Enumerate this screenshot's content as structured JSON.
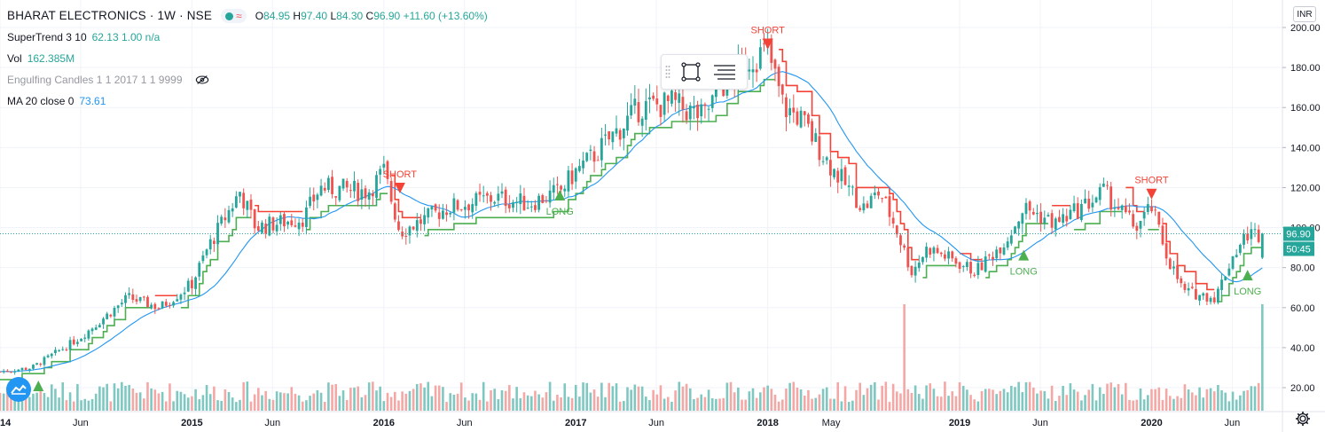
{
  "header": {
    "title": "BHARAT ELECTRONICS · 1W · NSE",
    "ohlc": {
      "o_label": "O",
      "o": "84.95",
      "h_label": "H",
      "h": "97.40",
      "l_label": "L",
      "l": "84.30",
      "c_label": "C",
      "c": "96.90",
      "change": "+11.60 (+13.60%)"
    }
  },
  "indicators": [
    {
      "name": "SuperTrend 3 10",
      "value": "62.13 1.00 n/a"
    },
    {
      "name": "Vol",
      "value": "162.385M"
    },
    {
      "name": "Engulfing Candles 1 1 2017 1 1 9999",
      "value": ""
    },
    {
      "name": "MA 20 close 0",
      "value": "73.61"
    }
  ],
  "currency": "INR",
  "price_tag": {
    "price": "96.90",
    "countdown": "50:45"
  },
  "colors": {
    "up": "#26a69a",
    "down": "#ef5350",
    "ma": "#2196f3",
    "st_up": "#4caf50",
    "st_down": "#f44336",
    "vol_up": "#7fc8c1",
    "vol_down": "#f4a8a6"
  },
  "icons": [
    "status-dot-icon",
    "wave-icon",
    "eye-slash-icon",
    "rectangle-icon",
    "lines-menu-icon",
    "drag-handle-icon",
    "tradingview-logo-icon",
    "gear-icon"
  ],
  "chart_data": {
    "type": "candlestick",
    "y_ticks": [
      "20.00",
      "40.00",
      "60.00",
      "80.00",
      "100.00",
      "120.00",
      "140.00",
      "160.00",
      "180.00",
      "200.00"
    ],
    "x_ticks": [
      "2014",
      "Jun",
      "2015",
      "Jun",
      "2016",
      "Jun",
      "2017",
      "Jun",
      "2018",
      "May",
      "2019",
      "Jun",
      "2020",
      "Jun"
    ],
    "ylim": [
      20,
      205
    ],
    "anchors": [
      {
        "date": "2014-01",
        "close": 28
      },
      {
        "date": "2014-03",
        "close": 30
      },
      {
        "date": "2014-04",
        "close": 35
      },
      {
        "date": "2014-06",
        "close": 45
      },
      {
        "date": "2014-09",
        "close": 65
      },
      {
        "date": "2014-11",
        "close": 60
      },
      {
        "date": "2015-01",
        "close": 72
      },
      {
        "date": "2015-02",
        "close": 90
      },
      {
        "date": "2015-04",
        "close": 118
      },
      {
        "date": "2015-05",
        "close": 100
      },
      {
        "date": "2015-08",
        "close": 105
      },
      {
        "date": "2015-09",
        "close": 120
      },
      {
        "date": "2015-12",
        "close": 118
      },
      {
        "date": "2016-01",
        "close": 128
      },
      {
        "date": "2016-02",
        "close": 98
      },
      {
        "date": "2016-05",
        "close": 110
      },
      {
        "date": "2016-08",
        "close": 115
      },
      {
        "date": "2016-10",
        "close": 112
      },
      {
        "date": "2016-12",
        "close": 118
      },
      {
        "date": "2017-01",
        "close": 128
      },
      {
        "date": "2017-02",
        "close": 135
      },
      {
        "date": "2017-05",
        "close": 160
      },
      {
        "date": "2017-07",
        "close": 162
      },
      {
        "date": "2017-09",
        "close": 155
      },
      {
        "date": "2017-10",
        "close": 170
      },
      {
        "date": "2017-12",
        "close": 185
      },
      {
        "date": "2018-01",
        "close": 188
      },
      {
        "date": "2018-02",
        "close": 160
      },
      {
        "date": "2018-03",
        "close": 155
      },
      {
        "date": "2018-05",
        "close": 130
      },
      {
        "date": "2018-07",
        "close": 110
      },
      {
        "date": "2018-08",
        "close": 118
      },
      {
        "date": "2018-09",
        "close": 100
      },
      {
        "date": "2018-10",
        "close": 78
      },
      {
        "date": "2018-11",
        "close": 90
      },
      {
        "date": "2019-01",
        "close": 82
      },
      {
        "date": "2019-02",
        "close": 78
      },
      {
        "date": "2019-04",
        "close": 95
      },
      {
        "date": "2019-05",
        "close": 110
      },
      {
        "date": "2019-07",
        "close": 102
      },
      {
        "date": "2019-09",
        "close": 112
      },
      {
        "date": "2019-10",
        "close": 118
      },
      {
        "date": "2019-12",
        "close": 100
      },
      {
        "date": "2020-01",
        "close": 110
      },
      {
        "date": "2020-02",
        "close": 85
      },
      {
        "date": "2020-03",
        "close": 68
      },
      {
        "date": "2020-05",
        "close": 65
      },
      {
        "date": "2020-06",
        "close": 84.95
      },
      {
        "date": "2020-07",
        "close": 96.9
      }
    ],
    "ma20_last": 73.61,
    "supertrend_last": 62.13,
    "signals": [
      {
        "label": "SHORT",
        "date": "2016-02",
        "price": 118
      },
      {
        "label": "LONG",
        "date": "2016-12",
        "price": 118
      },
      {
        "label": "SHORT",
        "date": "2018-01",
        "price": 190
      },
      {
        "label": "LONG",
        "date": "2019-05",
        "price": 88
      },
      {
        "label": "SHORT",
        "date": "2020-01",
        "price": 115
      },
      {
        "label": "LONG",
        "date": "2020-07",
        "price": 78
      }
    ],
    "last_price": 96.9
  }
}
